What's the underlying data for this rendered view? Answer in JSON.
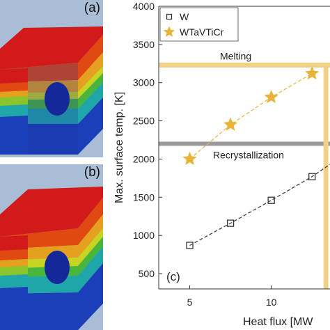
{
  "panels": {
    "a_label": "(a)",
    "b_label": "(b)"
  },
  "colors": {
    "W": "#333333",
    "WTaVTiCr": "#e8b33a",
    "melting_line": "#f0d189",
    "recryst_line": "#9a9a9a"
  },
  "chart_data": {
    "type": "line",
    "panel_label": "(c)",
    "xlabel": "Heat flux [MW",
    "ylabel": "Max. surface temp. [K]",
    "x_ticks": [
      5,
      10
    ],
    "y_ticks": [
      500,
      1000,
      1500,
      2000,
      2500,
      3000,
      3500,
      4000
    ],
    "xlim": [
      3.1,
      13.6
    ],
    "ylim": [
      300,
      4000
    ],
    "grid": false,
    "legend_position": "top-left",
    "series": [
      {
        "name": "W",
        "marker": "square",
        "x": [
          5,
          7.5,
          10,
          12.5,
          13.6
        ],
        "y": [
          870,
          1160,
          1460,
          1770,
          1930
        ]
      },
      {
        "name": "WTaVTiCr",
        "marker": "star",
        "x": [
          5,
          7.5,
          10,
          12.5
        ],
        "y": [
          2000,
          2450,
          2810,
          3120
        ]
      }
    ],
    "reference_lines": [
      {
        "label": "Melting",
        "y": 3230,
        "orientation": "horizontal"
      },
      {
        "label": "Recrystallization",
        "y": 2200,
        "orientation": "horizontal"
      },
      {
        "label": "",
        "x": 13.35,
        "orientation": "vertical"
      }
    ]
  }
}
